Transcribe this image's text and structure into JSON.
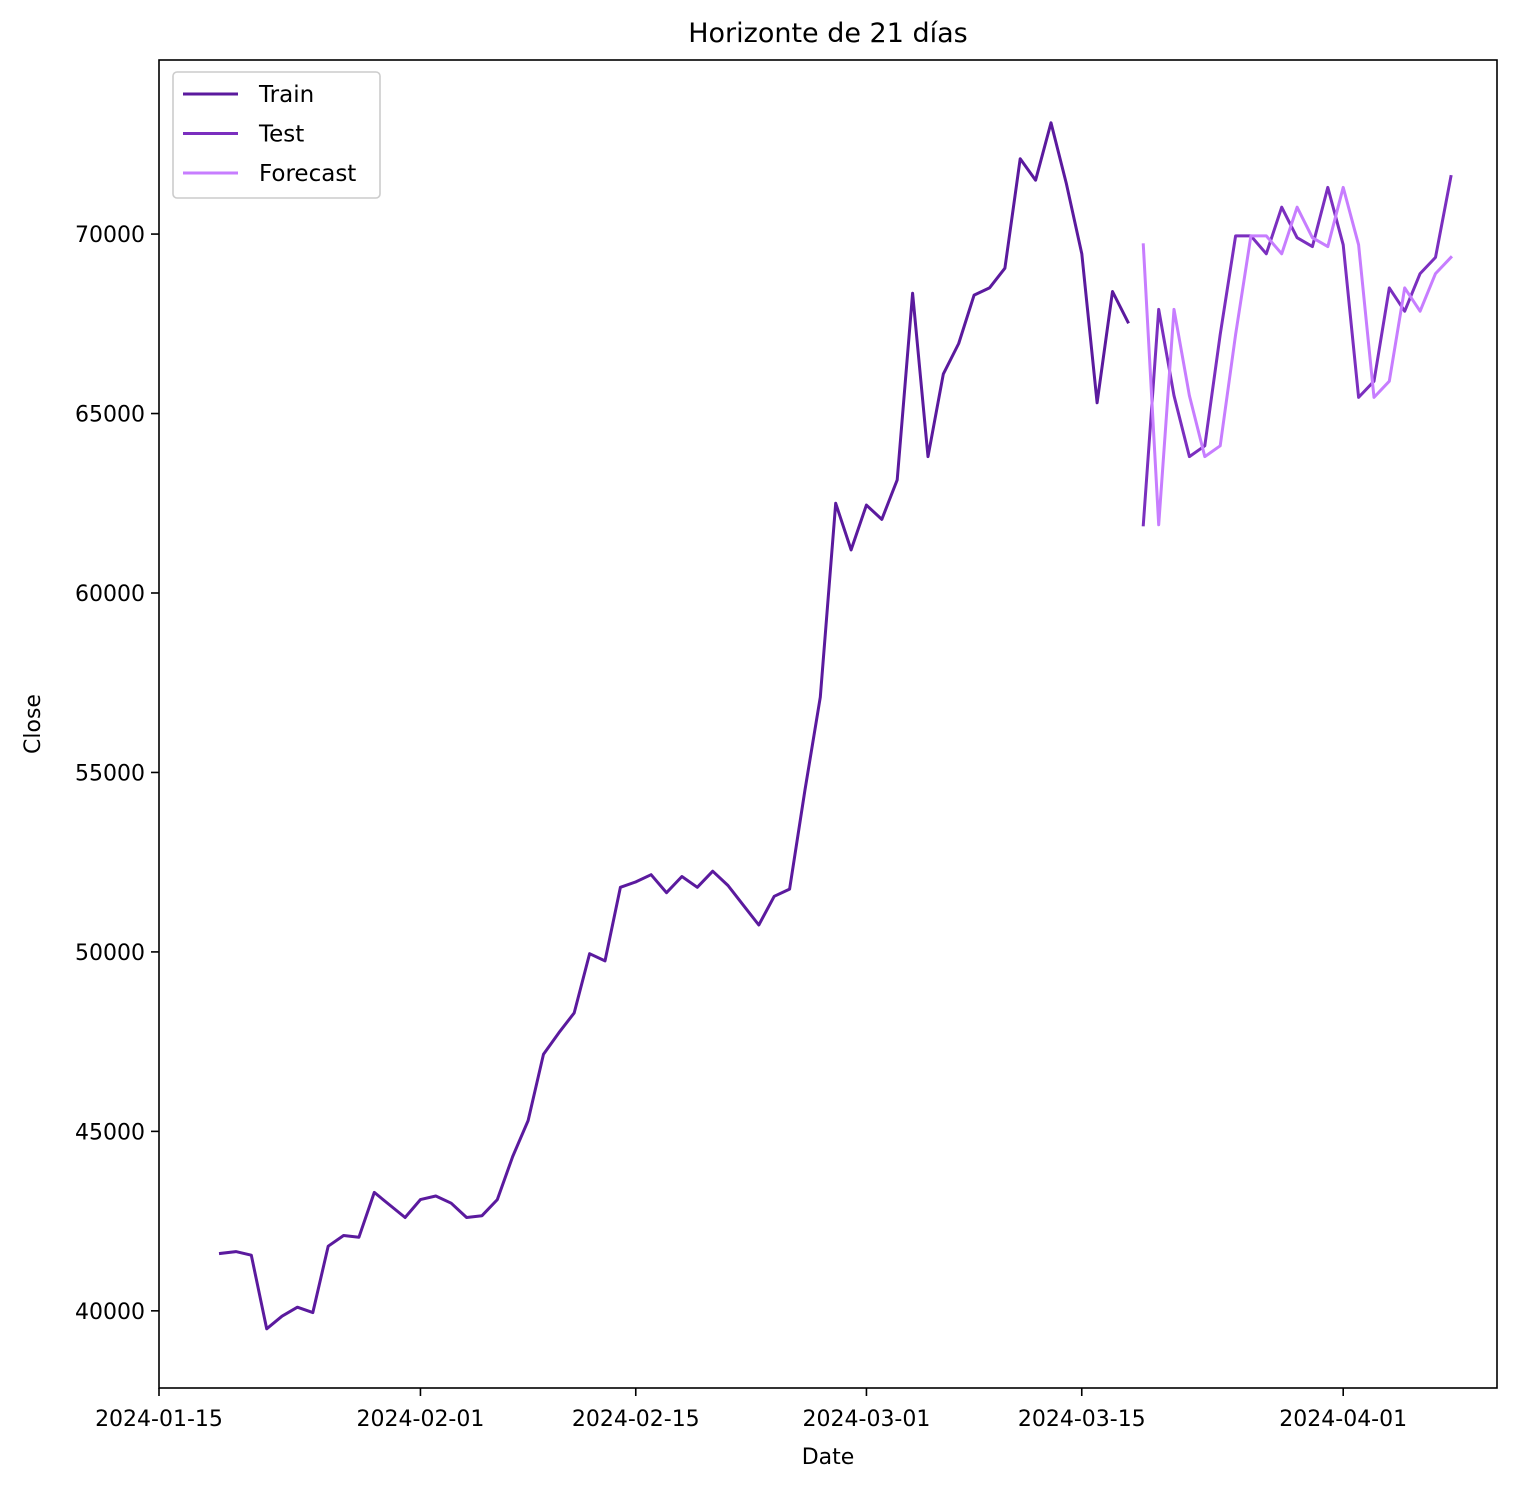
{
  "chart_data": {
    "type": "line",
    "title": "Horizonte de 21 días",
    "xlabel": "Date",
    "ylabel": "Close",
    "xlim": [
      "2024-01-15",
      "2024-04-11"
    ],
    "ylim": [
      37850,
      74850
    ],
    "xticks": [
      "2024-01-15",
      "2024-02-01",
      "2024-02-15",
      "2024-03-01",
      "2024-03-15",
      "2024-04-01"
    ],
    "yticks": [
      40000,
      45000,
      50000,
      55000,
      60000,
      65000,
      70000
    ],
    "grid": false,
    "legend_position": "top-left",
    "series": [
      {
        "name": "Train",
        "color": "#5b1a9e",
        "points": [
          [
            "2024-01-19",
            41600
          ],
          [
            "2024-01-20",
            41650
          ],
          [
            "2024-01-21",
            41550
          ],
          [
            "2024-01-22",
            39500
          ],
          [
            "2024-01-23",
            39850
          ],
          [
            "2024-01-24",
            40100
          ],
          [
            "2024-01-25",
            39950
          ],
          [
            "2024-01-26",
            41800
          ],
          [
            "2024-01-27",
            42100
          ],
          [
            "2024-01-28",
            42050
          ],
          [
            "2024-01-29",
            43300
          ],
          [
            "2024-01-30",
            42950
          ],
          [
            "2024-01-31",
            42600
          ],
          [
            "2024-02-01",
            43100
          ],
          [
            "2024-02-02",
            43200
          ],
          [
            "2024-02-03",
            43000
          ],
          [
            "2024-02-04",
            42600
          ],
          [
            "2024-02-05",
            42650
          ],
          [
            "2024-02-06",
            43100
          ],
          [
            "2024-02-07",
            44300
          ],
          [
            "2024-02-08",
            45300
          ],
          [
            "2024-02-09",
            47150
          ],
          [
            "2024-02-10",
            47750
          ],
          [
            "2024-02-11",
            48300
          ],
          [
            "2024-02-12",
            49950
          ],
          [
            "2024-02-13",
            49750
          ],
          [
            "2024-02-14",
            51800
          ],
          [
            "2024-02-15",
            51950
          ],
          [
            "2024-02-16",
            52150
          ],
          [
            "2024-02-17",
            51650
          ],
          [
            "2024-02-18",
            52100
          ],
          [
            "2024-02-19",
            51800
          ],
          [
            "2024-02-20",
            52250
          ],
          [
            "2024-02-21",
            51850
          ],
          [
            "2024-02-22",
            51300
          ],
          [
            "2024-02-23",
            50750
          ],
          [
            "2024-02-24",
            51550
          ],
          [
            "2024-02-25",
            51750
          ],
          [
            "2024-02-26",
            54500
          ],
          [
            "2024-02-27",
            57100
          ],
          [
            "2024-02-28",
            62500
          ],
          [
            "2024-02-29",
            61200
          ],
          [
            "2024-03-01",
            62450
          ],
          [
            "2024-03-02",
            62050
          ],
          [
            "2024-03-03",
            63150
          ],
          [
            "2024-03-04",
            68350
          ],
          [
            "2024-03-05",
            63800
          ],
          [
            "2024-03-06",
            66100
          ],
          [
            "2024-03-07",
            66950
          ],
          [
            "2024-03-08",
            68300
          ],
          [
            "2024-03-09",
            68500
          ],
          [
            "2024-03-10",
            69050
          ],
          [
            "2024-03-11",
            72100
          ],
          [
            "2024-03-12",
            71500
          ],
          [
            "2024-03-13",
            73100
          ],
          [
            "2024-03-14",
            71400
          ],
          [
            "2024-03-15",
            69450
          ],
          [
            "2024-03-16",
            65300
          ],
          [
            "2024-03-17",
            68400
          ],
          [
            "2024-03-18",
            67550
          ]
        ]
      },
      {
        "name": "Test",
        "color": "#7b2fbf",
        "points": [
          [
            "2024-03-19",
            61900
          ],
          [
            "2024-03-20",
            67900
          ],
          [
            "2024-03-21",
            65500
          ],
          [
            "2024-03-22",
            63800
          ],
          [
            "2024-03-23",
            64100
          ],
          [
            "2024-03-24",
            67200
          ],
          [
            "2024-03-25",
            69950
          ],
          [
            "2024-03-26",
            69950
          ],
          [
            "2024-03-27",
            69450
          ],
          [
            "2024-03-28",
            70750
          ],
          [
            "2024-03-29",
            69900
          ],
          [
            "2024-03-30",
            69650
          ],
          [
            "2024-03-31",
            71300
          ],
          [
            "2024-04-01",
            69700
          ],
          [
            "2024-04-02",
            65450
          ],
          [
            "2024-04-03",
            65900
          ],
          [
            "2024-04-04",
            68500
          ],
          [
            "2024-04-05",
            67850
          ],
          [
            "2024-04-06",
            68900
          ],
          [
            "2024-04-07",
            69350
          ],
          [
            "2024-04-08",
            71600
          ]
        ]
      },
      {
        "name": "Forecast",
        "color": "#c77dff",
        "points": [
          [
            "2024-03-19",
            69700
          ],
          [
            "2024-03-20",
            61900
          ],
          [
            "2024-03-21",
            67900
          ],
          [
            "2024-03-22",
            65500
          ],
          [
            "2024-03-23",
            63800
          ],
          [
            "2024-03-24",
            64100
          ],
          [
            "2024-03-25",
            67200
          ],
          [
            "2024-03-26",
            69950
          ],
          [
            "2024-03-27",
            69950
          ],
          [
            "2024-03-28",
            69450
          ],
          [
            "2024-03-29",
            70750
          ],
          [
            "2024-03-30",
            69900
          ],
          [
            "2024-03-31",
            69650
          ],
          [
            "2024-04-01",
            71300
          ],
          [
            "2024-04-02",
            69700
          ],
          [
            "2024-04-03",
            65450
          ],
          [
            "2024-04-04",
            65900
          ],
          [
            "2024-04-05",
            68500
          ],
          [
            "2024-04-06",
            67850
          ],
          [
            "2024-04-07",
            68900
          ],
          [
            "2024-04-08",
            69350
          ]
        ]
      }
    ]
  }
}
